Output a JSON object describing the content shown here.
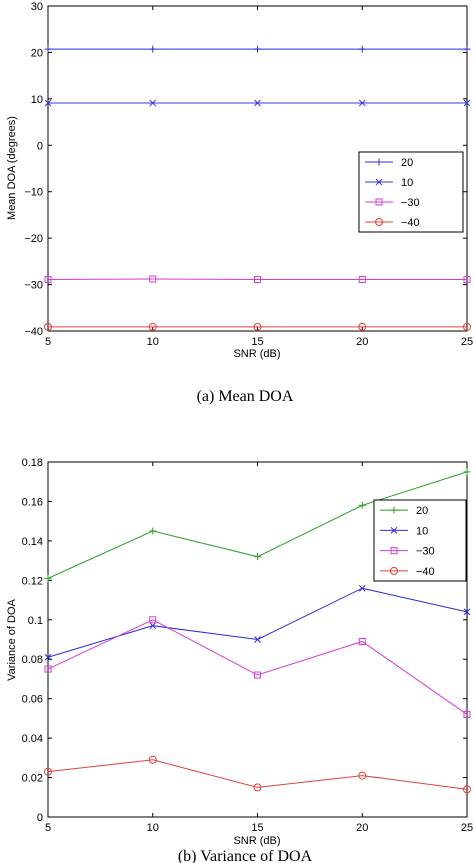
{
  "chart_data": [
    {
      "type": "line",
      "caption": "(a) Mean DOA",
      "xlabel": "SNR (dB)",
      "ylabel": "Mean DOA (degrees)",
      "xlim": [
        5,
        25
      ],
      "ylim": [
        -40,
        30
      ],
      "xticks": [
        5,
        10,
        15,
        20,
        25
      ],
      "yticks": [
        -40,
        -30,
        -20,
        -10,
        0,
        10,
        20,
        30
      ],
      "grid": false,
      "legend_position": "right",
      "x": [
        5,
        10,
        15,
        20,
        25
      ],
      "series": [
        {
          "name": "20",
          "values": [
            20.7,
            20.7,
            20.7,
            20.7,
            20.7
          ],
          "color": "#2b2bd6",
          "marker": "plus"
        },
        {
          "name": "10",
          "values": [
            9.1,
            9.1,
            9.1,
            9.1,
            9.1
          ],
          "color": "#3b3bd6",
          "marker": "x"
        },
        {
          "name": "−30",
          "values": [
            -28.9,
            -28.8,
            -28.9,
            -28.9,
            -28.9
          ],
          "color": "#d43cd4",
          "marker": "square"
        },
        {
          "name": "−40",
          "values": [
            -39.1,
            -39.1,
            -39.1,
            -39.1,
            -39.1
          ],
          "color": "#e0403c",
          "marker": "circle"
        }
      ]
    },
    {
      "type": "line",
      "caption": "(b) Variance of DOA",
      "xlabel": "SNR (dB)",
      "ylabel": "Variance of DOA",
      "xlim": [
        5,
        25
      ],
      "ylim": [
        0,
        0.18
      ],
      "xticks": [
        5,
        10,
        15,
        20,
        25
      ],
      "yticks": [
        0,
        0.02,
        0.04,
        0.06,
        0.08,
        0.1,
        0.12,
        0.14,
        0.16,
        0.18
      ],
      "ytick_labels": [
        "0",
        "0.02",
        "0.04",
        "0.06",
        "0.08",
        "0.1",
        "0.12",
        "0.14",
        "0.16",
        "0.18"
      ],
      "grid": false,
      "legend_position": "top-right",
      "x": [
        5,
        10,
        15,
        20,
        25
      ],
      "series": [
        {
          "name": "20",
          "values": [
            0.121,
            0.145,
            0.132,
            0.158,
            0.175
          ],
          "color": "#2aa02a",
          "marker": "plus"
        },
        {
          "name": "10",
          "values": [
            0.081,
            0.097,
            0.09,
            0.116,
            0.104
          ],
          "color": "#2b2bd6",
          "marker": "x"
        },
        {
          "name": "−30",
          "values": [
            0.075,
            0.1,
            0.072,
            0.089,
            0.052
          ],
          "color": "#d43cd4",
          "marker": "square"
        },
        {
          "name": "−40",
          "values": [
            0.023,
            0.029,
            0.015,
            0.021,
            0.014
          ],
          "color": "#e0403c",
          "marker": "circle"
        }
      ]
    }
  ]
}
